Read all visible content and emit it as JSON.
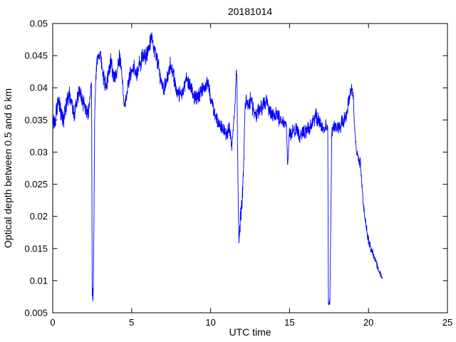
{
  "chart_data": {
    "type": "line",
    "title": "20181014",
    "xlabel": "UTC time",
    "ylabel": "Optical depth between 0.5 and 6 km",
    "xlim": [
      0,
      25
    ],
    "ylim": [
      0.005,
      0.05
    ],
    "xticks": [
      0,
      5,
      10,
      15,
      20,
      25
    ],
    "xtick_labels": [
      "0",
      "5",
      "10",
      "15",
      "20",
      "25"
    ],
    "yticks": [
      0.005,
      0.01,
      0.015,
      0.02,
      0.025,
      0.03,
      0.035,
      0.04,
      0.045,
      0.05
    ],
    "ytick_labels": [
      "0.005",
      "0.01",
      "0.015",
      "0.02",
      "0.025",
      "0.03",
      "0.035",
      "0.04",
      "0.045",
      "0.05"
    ],
    "grid": false,
    "legend": null,
    "axis_color": "#000000",
    "background": "#ffffff",
    "series": [
      {
        "name": "optical depth 0.5-6 km",
        "color": "#0000ff",
        "keypoints": [
          [
            0.0,
            0.0352,
            0.0012
          ],
          [
            0.1,
            0.034,
            0.0012
          ],
          [
            0.36,
            0.0381,
            0.0012
          ],
          [
            0.66,
            0.0348,
            0.0012
          ],
          [
            1.05,
            0.0392,
            0.0012
          ],
          [
            1.35,
            0.0359,
            0.0012
          ],
          [
            1.7,
            0.0398,
            0.0012
          ],
          [
            1.9,
            0.0375,
            0.0012
          ],
          [
            2.1,
            0.0366,
            0.0012
          ],
          [
            2.25,
            0.0358,
            0.0011
          ],
          [
            2.38,
            0.039,
            0.0009
          ],
          [
            2.45,
            0.0412,
            0.0005
          ],
          [
            2.47,
            0.034,
            0.0004
          ],
          [
            2.5,
            0.0082,
            0.0013
          ],
          [
            2.57,
            0.0078,
            0.0013
          ],
          [
            2.61,
            0.019,
            0.0008
          ],
          [
            2.66,
            0.036,
            0.001
          ],
          [
            2.76,
            0.0432,
            0.0011
          ],
          [
            2.92,
            0.045,
            0.0009
          ],
          [
            3.02,
            0.0452,
            0.0008
          ],
          [
            3.18,
            0.042,
            0.0012
          ],
          [
            3.38,
            0.0403,
            0.0012
          ],
          [
            3.58,
            0.0431,
            0.0012
          ],
          [
            3.72,
            0.0438,
            0.0012
          ],
          [
            3.88,
            0.0412,
            0.0012
          ],
          [
            4.06,
            0.0428,
            0.0012
          ],
          [
            4.22,
            0.0446,
            0.001
          ],
          [
            4.36,
            0.0425,
            0.0011
          ],
          [
            4.52,
            0.0372,
            0.0008
          ],
          [
            4.68,
            0.039,
            0.001
          ],
          [
            4.85,
            0.0416,
            0.0012
          ],
          [
            5.02,
            0.0428,
            0.0012
          ],
          [
            5.18,
            0.0433,
            0.0011
          ],
          [
            5.32,
            0.042,
            0.0011
          ],
          [
            5.52,
            0.0438,
            0.0012
          ],
          [
            5.72,
            0.0452,
            0.0012
          ],
          [
            5.9,
            0.0446,
            0.0011
          ],
          [
            6.06,
            0.0463,
            0.001
          ],
          [
            6.26,
            0.0479,
            0.0009
          ],
          [
            6.42,
            0.0461,
            0.001
          ],
          [
            6.56,
            0.0449,
            0.0011
          ],
          [
            6.72,
            0.0428,
            0.0012
          ],
          [
            6.92,
            0.0406,
            0.001
          ],
          [
            7.06,
            0.0398,
            0.001
          ],
          [
            7.26,
            0.0419,
            0.0011
          ],
          [
            7.46,
            0.0436,
            0.0011
          ],
          [
            7.62,
            0.0425,
            0.0011
          ],
          [
            7.82,
            0.0401,
            0.0011
          ],
          [
            8.02,
            0.0388,
            0.001
          ],
          [
            8.22,
            0.0396,
            0.001
          ],
          [
            8.46,
            0.0412,
            0.001
          ],
          [
            8.66,
            0.0405,
            0.001
          ],
          [
            8.86,
            0.0391,
            0.001
          ],
          [
            9.06,
            0.0383,
            0.001
          ],
          [
            9.26,
            0.039,
            0.001
          ],
          [
            9.5,
            0.04,
            0.001
          ],
          [
            9.76,
            0.0406,
            0.001
          ],
          [
            9.96,
            0.0392,
            0.001
          ],
          [
            10.16,
            0.0369,
            0.001
          ],
          [
            10.36,
            0.0351,
            0.001
          ],
          [
            10.6,
            0.0341,
            0.001
          ],
          [
            10.86,
            0.0332,
            0.001
          ],
          [
            11.06,
            0.0328,
            0.001
          ],
          [
            11.2,
            0.0338,
            0.001
          ],
          [
            11.33,
            0.0306,
            0.001
          ],
          [
            11.45,
            0.034,
            0.0008
          ],
          [
            11.55,
            0.0368,
            0.0007
          ],
          [
            11.62,
            0.0431,
            0.0005
          ],
          [
            11.67,
            0.0415,
            0.0006
          ],
          [
            11.73,
            0.025,
            0.0014
          ],
          [
            11.79,
            0.016,
            0.001
          ],
          [
            11.87,
            0.0187,
            0.0014
          ],
          [
            11.96,
            0.0216,
            0.0017
          ],
          [
            12.04,
            0.0246,
            0.0017
          ],
          [
            12.1,
            0.0291,
            0.0014
          ],
          [
            12.16,
            0.0358,
            0.0011
          ],
          [
            12.26,
            0.0381,
            0.0011
          ],
          [
            12.42,
            0.0372,
            0.001
          ],
          [
            12.56,
            0.0384,
            0.001
          ],
          [
            12.72,
            0.0362,
            0.001
          ],
          [
            12.92,
            0.036,
            0.001
          ],
          [
            13.12,
            0.0368,
            0.001
          ],
          [
            13.32,
            0.0371,
            0.001
          ],
          [
            13.52,
            0.038,
            0.001
          ],
          [
            13.72,
            0.0366,
            0.001
          ],
          [
            13.92,
            0.0355,
            0.001
          ],
          [
            14.16,
            0.0359,
            0.001
          ],
          [
            14.42,
            0.0351,
            0.0009
          ],
          [
            14.66,
            0.0345,
            0.0008
          ],
          [
            14.8,
            0.0342,
            0.0007
          ],
          [
            14.88,
            0.0276,
            0.0006
          ],
          [
            14.98,
            0.033,
            0.0008
          ],
          [
            15.16,
            0.033,
            0.0009
          ],
          [
            15.42,
            0.0336,
            0.0009
          ],
          [
            15.66,
            0.0325,
            0.0009
          ],
          [
            15.92,
            0.0329,
            0.0009
          ],
          [
            16.16,
            0.0335,
            0.0009
          ],
          [
            16.42,
            0.0343,
            0.0009
          ],
          [
            16.66,
            0.0356,
            0.0009
          ],
          [
            16.9,
            0.0345,
            0.0009
          ],
          [
            17.1,
            0.0336,
            0.0009
          ],
          [
            17.3,
            0.0341,
            0.0008
          ],
          [
            17.42,
            0.0338,
            0.0004
          ],
          [
            17.46,
            0.0062,
            0.0006
          ],
          [
            17.55,
            0.0068,
            0.001
          ],
          [
            17.61,
            0.019,
            0.0008
          ],
          [
            17.67,
            0.033,
            0.0008
          ],
          [
            17.86,
            0.0341,
            0.0009
          ],
          [
            18.06,
            0.0335,
            0.0009
          ],
          [
            18.26,
            0.0343,
            0.0009
          ],
          [
            18.46,
            0.0349,
            0.001
          ],
          [
            18.66,
            0.0363,
            0.001
          ],
          [
            18.8,
            0.0386,
            0.0009
          ],
          [
            18.92,
            0.0401,
            0.0008
          ],
          [
            19.02,
            0.0389,
            0.0008
          ],
          [
            19.12,
            0.0341,
            0.0008
          ],
          [
            19.22,
            0.0304,
            0.0008
          ],
          [
            19.36,
            0.0291,
            0.0008
          ],
          [
            19.5,
            0.0281,
            0.0007
          ],
          [
            19.58,
            0.0252,
            0.0006
          ],
          [
            19.66,
            0.0223,
            0.0008
          ],
          [
            19.76,
            0.0196,
            0.0008
          ],
          [
            19.9,
            0.0175,
            0.0007
          ],
          [
            20.05,
            0.0158,
            0.0006
          ],
          [
            20.2,
            0.0146,
            0.0006
          ],
          [
            20.35,
            0.0137,
            0.0005
          ],
          [
            20.5,
            0.0127,
            0.0005
          ],
          [
            20.65,
            0.0116,
            0.0004
          ],
          [
            20.8,
            0.0107,
            0.0004
          ],
          [
            20.88,
            0.0103,
            0.0003
          ]
        ]
      }
    ],
    "noise_seed": 20181014,
    "samples_per_unit": 84
  }
}
